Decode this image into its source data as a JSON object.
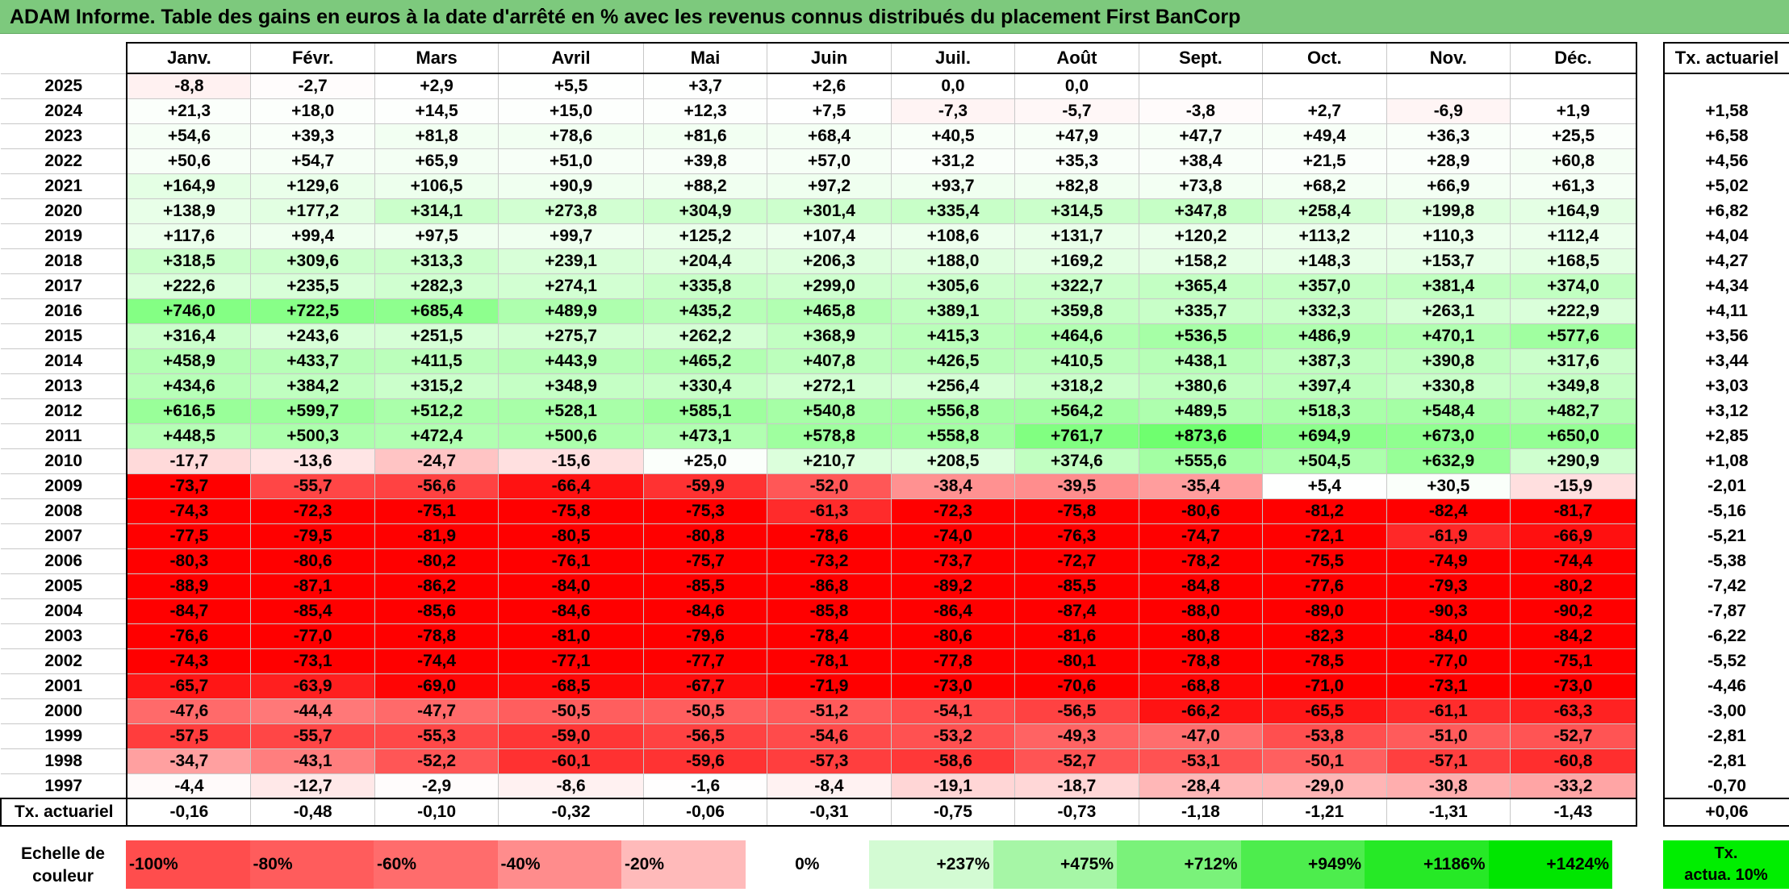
{
  "title": "ADAM Informe. Table des gains en euros à la date d'arrêté en % avec les revenus connus distribués du placement First BanCorp",
  "months": [
    "Janv.",
    "Févr.",
    "Mars",
    "Avril",
    "Mai",
    "Juin",
    "Juil.",
    "Août",
    "Sept.",
    "Oct.",
    "Nov.",
    "Déc."
  ],
  "rate_header": "Tx. actuariel",
  "rows": [
    {
      "year": "2025",
      "values": [
        "-8,8",
        "-2,7",
        "+2,9",
        "+5,5",
        "+3,7",
        "+2,6",
        "0,0",
        "0,0",
        "",
        "",
        "",
        ""
      ],
      "rate": ""
    },
    {
      "year": "2024",
      "values": [
        "+21,3",
        "+18,0",
        "+14,5",
        "+15,0",
        "+12,3",
        "+7,5",
        "-7,3",
        "-5,7",
        "-3,8",
        "+2,7",
        "-6,9",
        "+1,9"
      ],
      "rate": "+1,58"
    },
    {
      "year": "2023",
      "values": [
        "+54,6",
        "+39,3",
        "+81,8",
        "+78,6",
        "+81,6",
        "+68,4",
        "+40,5",
        "+47,9",
        "+47,7",
        "+49,4",
        "+36,3",
        "+25,5"
      ],
      "rate": "+6,58"
    },
    {
      "year": "2022",
      "values": [
        "+50,6",
        "+54,7",
        "+65,9",
        "+51,0",
        "+39,8",
        "+57,0",
        "+31,2",
        "+35,3",
        "+38,4",
        "+21,5",
        "+28,9",
        "+60,8"
      ],
      "rate": "+4,56"
    },
    {
      "year": "2021",
      "values": [
        "+164,9",
        "+129,6",
        "+106,5",
        "+90,9",
        "+88,2",
        "+97,2",
        "+93,7",
        "+82,8",
        "+73,8",
        "+68,2",
        "+66,9",
        "+61,3"
      ],
      "rate": "+5,02"
    },
    {
      "year": "2020",
      "values": [
        "+138,9",
        "+177,2",
        "+314,1",
        "+273,8",
        "+304,9",
        "+301,4",
        "+335,4",
        "+314,5",
        "+347,8",
        "+258,4",
        "+199,8",
        "+164,9"
      ],
      "rate": "+6,82"
    },
    {
      "year": "2019",
      "values": [
        "+117,6",
        "+99,4",
        "+97,5",
        "+99,7",
        "+125,2",
        "+107,4",
        "+108,6",
        "+131,7",
        "+120,2",
        "+113,2",
        "+110,3",
        "+112,4"
      ],
      "rate": "+4,04"
    },
    {
      "year": "2018",
      "values": [
        "+318,5",
        "+309,6",
        "+313,3",
        "+239,1",
        "+204,4",
        "+206,3",
        "+188,0",
        "+169,2",
        "+158,2",
        "+148,3",
        "+153,7",
        "+168,5"
      ],
      "rate": "+4,27"
    },
    {
      "year": "2017",
      "values": [
        "+222,6",
        "+235,5",
        "+282,3",
        "+274,1",
        "+335,8",
        "+299,0",
        "+305,6",
        "+322,7",
        "+365,4",
        "+357,0",
        "+381,4",
        "+374,0"
      ],
      "rate": "+4,34"
    },
    {
      "year": "2016",
      "values": [
        "+746,0",
        "+722,5",
        "+685,4",
        "+489,9",
        "+435,2",
        "+465,8",
        "+389,1",
        "+359,8",
        "+335,7",
        "+332,3",
        "+263,1",
        "+222,9"
      ],
      "rate": "+4,11"
    },
    {
      "year": "2015",
      "values": [
        "+316,4",
        "+243,6",
        "+251,5",
        "+275,7",
        "+262,2",
        "+368,9",
        "+415,3",
        "+464,6",
        "+536,5",
        "+486,9",
        "+470,1",
        "+577,6"
      ],
      "rate": "+3,56"
    },
    {
      "year": "2014",
      "values": [
        "+458,9",
        "+433,7",
        "+411,5",
        "+443,9",
        "+465,2",
        "+407,8",
        "+426,5",
        "+410,5",
        "+438,1",
        "+387,3",
        "+390,8",
        "+317,6"
      ],
      "rate": "+3,44"
    },
    {
      "year": "2013",
      "values": [
        "+434,6",
        "+384,2",
        "+315,2",
        "+348,9",
        "+330,4",
        "+272,1",
        "+256,4",
        "+318,2",
        "+380,6",
        "+397,4",
        "+330,8",
        "+349,8"
      ],
      "rate": "+3,03"
    },
    {
      "year": "2012",
      "values": [
        "+616,5",
        "+599,7",
        "+512,2",
        "+528,1",
        "+585,1",
        "+540,8",
        "+556,8",
        "+564,2",
        "+489,5",
        "+518,3",
        "+548,4",
        "+482,7"
      ],
      "rate": "+3,12"
    },
    {
      "year": "2011",
      "values": [
        "+448,5",
        "+500,3",
        "+472,4",
        "+500,6",
        "+473,1",
        "+578,8",
        "+558,8",
        "+761,7",
        "+873,6",
        "+694,9",
        "+673,0",
        "+650,0"
      ],
      "rate": "+2,85"
    },
    {
      "year": "2010",
      "values": [
        "-17,7",
        "-13,6",
        "-24,7",
        "-15,6",
        "+25,0",
        "+210,7",
        "+208,5",
        "+374,6",
        "+555,6",
        "+504,5",
        "+632,9",
        "+290,9"
      ],
      "rate": "+1,08"
    },
    {
      "year": "2009",
      "values": [
        "-73,7",
        "-55,7",
        "-56,6",
        "-66,4",
        "-59,9",
        "-52,0",
        "-38,4",
        "-39,5",
        "-35,4",
        "+5,4",
        "+30,5",
        "-15,9"
      ],
      "rate": "-2,01"
    },
    {
      "year": "2008",
      "values": [
        "-74,3",
        "-72,3",
        "-75,1",
        "-75,8",
        "-75,3",
        "-61,3",
        "-72,3",
        "-75,8",
        "-80,6",
        "-81,2",
        "-82,4",
        "-81,7"
      ],
      "rate": "-5,16"
    },
    {
      "year": "2007",
      "values": [
        "-77,5",
        "-79,5",
        "-81,9",
        "-80,5",
        "-80,8",
        "-78,6",
        "-74,0",
        "-76,3",
        "-74,7",
        "-72,1",
        "-61,9",
        "-66,9"
      ],
      "rate": "-5,21"
    },
    {
      "year": "2006",
      "values": [
        "-80,3",
        "-80,6",
        "-80,2",
        "-76,1",
        "-75,7",
        "-73,2",
        "-73,7",
        "-72,7",
        "-78,2",
        "-75,5",
        "-74,9",
        "-74,4"
      ],
      "rate": "-5,38"
    },
    {
      "year": "2005",
      "values": [
        "-88,9",
        "-87,1",
        "-86,2",
        "-84,0",
        "-85,5",
        "-86,8",
        "-89,2",
        "-85,5",
        "-84,8",
        "-77,6",
        "-79,3",
        "-80,2"
      ],
      "rate": "-7,42"
    },
    {
      "year": "2004",
      "values": [
        "-84,7",
        "-85,4",
        "-85,6",
        "-84,6",
        "-84,6",
        "-85,8",
        "-86,4",
        "-87,4",
        "-88,0",
        "-89,0",
        "-90,3",
        "-90,2"
      ],
      "rate": "-7,87"
    },
    {
      "year": "2003",
      "values": [
        "-76,6",
        "-77,0",
        "-78,8",
        "-81,0",
        "-79,6",
        "-78,4",
        "-80,6",
        "-81,6",
        "-80,8",
        "-82,3",
        "-84,0",
        "-84,2"
      ],
      "rate": "-6,22"
    },
    {
      "year": "2002",
      "values": [
        "-74,3",
        "-73,1",
        "-74,4",
        "-77,1",
        "-77,7",
        "-78,1",
        "-77,8",
        "-80,1",
        "-78,8",
        "-78,5",
        "-77,0",
        "-75,1"
      ],
      "rate": "-5,52"
    },
    {
      "year": "2001",
      "values": [
        "-65,7",
        "-63,9",
        "-69,0",
        "-68,5",
        "-67,7",
        "-71,9",
        "-73,0",
        "-70,6",
        "-68,8",
        "-71,0",
        "-73,1",
        "-73,0"
      ],
      "rate": "-4,46"
    },
    {
      "year": "2000",
      "values": [
        "-47,6",
        "-44,4",
        "-47,7",
        "-50,5",
        "-50,5",
        "-51,2",
        "-54,1",
        "-56,5",
        "-66,2",
        "-65,5",
        "-61,1",
        "-63,3"
      ],
      "rate": "-3,00"
    },
    {
      "year": "1999",
      "values": [
        "-57,5",
        "-55,7",
        "-55,3",
        "-59,0",
        "-56,5",
        "-54,6",
        "-53,2",
        "-49,3",
        "-47,0",
        "-53,8",
        "-51,0",
        "-52,7"
      ],
      "rate": "-2,81"
    },
    {
      "year": "1998",
      "values": [
        "-34,7",
        "-43,1",
        "-52,2",
        "-60,1",
        "-59,6",
        "-57,3",
        "-58,6",
        "-52,7",
        "-53,1",
        "-50,1",
        "-57,1",
        "-60,8"
      ],
      "rate": "-2,81"
    },
    {
      "year": "1997",
      "values": [
        "-4,4",
        "-12,7",
        "-2,9",
        "-8,6",
        "-1,6",
        "-8,4",
        "-19,1",
        "-18,7",
        "-28,4",
        "-29,0",
        "-30,8",
        "-33,2"
      ],
      "rate": "-0,70"
    }
  ],
  "actuarial_row": {
    "label": "Tx. actuariel",
    "values": [
      "-0,16",
      "-0,48",
      "-0,10",
      "-0,32",
      "-0,06",
      "-0,31",
      "-0,75",
      "-0,73",
      "-1,18",
      "-1,21",
      "-1,31",
      "-1,43"
    ],
    "total": "+0,06"
  },
  "legend": {
    "label_line1": "Echelle de",
    "label_line2": "couleur",
    "items": [
      {
        "label": "-100%",
        "color": "#ff4d4d"
      },
      {
        "label": "-80%",
        "color": "#ff5c5c"
      },
      {
        "label": "-60%",
        "color": "#ff6c6c"
      },
      {
        "label": "-40%",
        "color": "#ff8c8c"
      },
      {
        "label": "-20%",
        "color": "#ffbaba"
      },
      {
        "label": "0%",
        "color": "#ffffff"
      },
      {
        "label": "+237%",
        "color": "#d3fbd3"
      },
      {
        "label": "+475%",
        "color": "#a6f6a6"
      },
      {
        "label": "+712%",
        "color": "#7af27a"
      },
      {
        "label": "+949%",
        "color": "#4ded4d"
      },
      {
        "label": "+1186%",
        "color": "#26e926"
      },
      {
        "label": "+1424%",
        "color": "#00e600"
      }
    ],
    "actua_line1": "Tx.",
    "actua_line2": "actua. 10%",
    "actua_color": "#00ee00"
  },
  "colors": {
    "title_bg": "#7dc97d",
    "deep_red": "#ff0000",
    "bright_green": "#00ee00"
  }
}
